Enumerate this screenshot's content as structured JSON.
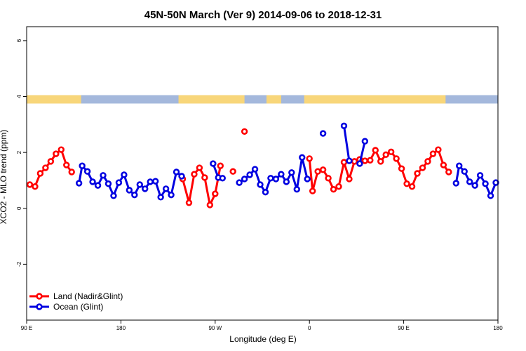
{
  "chart_data": {
    "type": "line",
    "title": "45N-50N March (Ver 9)   2014-09-06 to 2018-12-31",
    "xlabel": "Longitude (deg E)",
    "ylabel": "XCO2 - MLO trend (ppm)",
    "x_tick_labels": [
      "90 E",
      "180",
      "90 W",
      "0",
      "90 E",
      "180"
    ],
    "x_ticks": [
      90,
      180,
      270,
      360,
      450,
      540
    ],
    "xlim": [
      90,
      540
    ],
    "ylim": [
      -4,
      6.5
    ],
    "y_ticks": [
      -2,
      0,
      2,
      4,
      6
    ],
    "y_tick_labels": [
      "-2",
      "0",
      "2",
      "4",
      "6"
    ],
    "grid": false,
    "legend_position": "bottom-left",
    "colors": {
      "land": "#ff0000",
      "ocean": "#0000e0",
      "map_land": "#f8d67a",
      "map_ocean": "#a4b8dc"
    },
    "series": [
      {
        "name": "Land (Nadir&Glint)",
        "color": "#ff0000",
        "segments": [
          [
            [
              93,
              0.85
            ],
            [
              98,
              0.78
            ],
            [
              103,
              1.25
            ],
            [
              108,
              1.45
            ],
            [
              113,
              1.68
            ],
            [
              118,
              1.95
            ],
            [
              123,
              2.1
            ],
            [
              128,
              1.55
            ],
            [
              133,
              1.3
            ]
          ],
          [
            [
              239,
              1.05
            ],
            [
              245,
              0.2
            ],
            [
              250,
              1.22
            ],
            [
              255,
              1.45
            ],
            [
              260,
              1.1
            ],
            [
              265,
              0.12
            ],
            [
              270,
              0.52
            ],
            [
              275,
              1.52
            ]
          ],
          [
            [
              287,
              1.32
            ]
          ],
          [
            [
              298,
              2.75
            ]
          ],
          [
            [
              360,
              1.78
            ],
            [
              363,
              0.62
            ],
            [
              368,
              1.32
            ],
            [
              373,
              1.38
            ],
            [
              378,
              1.08
            ],
            [
              383,
              0.68
            ],
            [
              388,
              0.78
            ],
            [
              393,
              1.65
            ],
            [
              398,
              1.05
            ],
            [
              403,
              1.68
            ],
            [
              408,
              1.75
            ],
            [
              413,
              1.7
            ],
            [
              418,
              1.72
            ],
            [
              423,
              2.08
            ],
            [
              428,
              1.68
            ],
            [
              433,
              1.92
            ],
            [
              438,
              2.02
            ],
            [
              443,
              1.78
            ],
            [
              448,
              1.42
            ],
            [
              453,
              0.88
            ],
            [
              458,
              0.78
            ],
            [
              463,
              1.25
            ],
            [
              468,
              1.45
            ],
            [
              473,
              1.68
            ],
            [
              478,
              1.95
            ],
            [
              483,
              2.1
            ],
            [
              488,
              1.55
            ],
            [
              493,
              1.3
            ]
          ]
        ]
      },
      {
        "name": "Ocean (Glint)",
        "color": "#0000e0",
        "segments": [
          [
            [
              140,
              0.9
            ],
            [
              143,
              1.52
            ],
            [
              148,
              1.32
            ],
            [
              153,
              0.95
            ],
            [
              158,
              0.82
            ],
            [
              163,
              1.18
            ],
            [
              168,
              0.88
            ],
            [
              173,
              0.45
            ],
            [
              178,
              0.92
            ],
            [
              183,
              1.2
            ],
            [
              188,
              0.65
            ],
            [
              193,
              0.48
            ],
            [
              198,
              0.85
            ],
            [
              203,
              0.7
            ],
            [
              208,
              0.95
            ],
            [
              213,
              0.97
            ],
            [
              218,
              0.4
            ],
            [
              223,
              0.7
            ],
            [
              228,
              0.48
            ],
            [
              233,
              1.3
            ],
            [
              238,
              1.15
            ]
          ],
          [
            [
              268,
              1.6
            ],
            [
              273,
              1.1
            ],
            [
              277,
              1.08
            ]
          ],
          [
            [
              293,
              0.92
            ],
            [
              298,
              1.05
            ],
            [
              303,
              1.2
            ],
            [
              308,
              1.4
            ],
            [
              313,
              0.85
            ],
            [
              318,
              0.58
            ],
            [
              323,
              1.08
            ],
            [
              328,
              1.05
            ],
            [
              333,
              1.22
            ],
            [
              338,
              0.95
            ],
            [
              343,
              1.28
            ],
            [
              348,
              0.68
            ],
            [
              353,
              1.82
            ],
            [
              358,
              1.05
            ]
          ],
          [
            [
              373,
              2.68
            ]
          ],
          [
            [
              393,
              2.95
            ],
            [
              398,
              1.7
            ]
          ],
          [
            [
              408,
              1.6
            ],
            [
              413,
              2.4
            ]
          ],
          [
            [
              500,
              0.9
            ],
            [
              503,
              1.52
            ],
            [
              508,
              1.32
            ],
            [
              513,
              0.95
            ],
            [
              518,
              0.82
            ],
            [
              523,
              1.18
            ],
            [
              528,
              0.88
            ],
            [
              533,
              0.45
            ],
            [
              538,
              0.92
            ]
          ]
        ]
      }
    ],
    "map_strip": {
      "y_range": [
        3.75,
        4.05
      ],
      "land_x_ranges": [
        [
          90,
          142
        ],
        [
          235,
          298
        ],
        [
          319,
          333
        ],
        [
          355,
          490
        ]
      ]
    }
  }
}
